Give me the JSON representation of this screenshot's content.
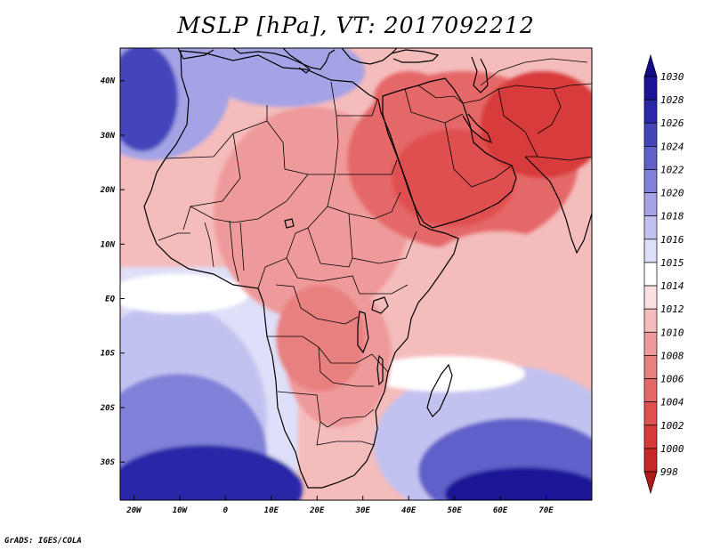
{
  "title": "MSLP [hPa], VT: 2017092212",
  "credit": "GrADS: IGES/COLA",
  "chart_data": {
    "type": "heatmap",
    "variable": "Mean sea level pressure",
    "units": "hPa",
    "valid_time": "2017092212",
    "lon_range": [
      -23,
      80
    ],
    "lat_range": [
      -37,
      46
    ],
    "x_ticks": [
      {
        "value": -20,
        "label": "20W"
      },
      {
        "value": -10,
        "label": "10W"
      },
      {
        "value": 0,
        "label": "0"
      },
      {
        "value": 10,
        "label": "10E"
      },
      {
        "value": 20,
        "label": "20E"
      },
      {
        "value": 30,
        "label": "30E"
      },
      {
        "value": 40,
        "label": "40E"
      },
      {
        "value": 50,
        "label": "50E"
      },
      {
        "value": 60,
        "label": "60E"
      },
      {
        "value": 70,
        "label": "70E"
      }
    ],
    "y_ticks": [
      {
        "value": 40,
        "label": "40N"
      },
      {
        "value": 30,
        "label": "30N"
      },
      {
        "value": 20,
        "label": "20N"
      },
      {
        "value": 10,
        "label": "10N"
      },
      {
        "value": 0,
        "label": "EQ"
      },
      {
        "value": -10,
        "label": "10S"
      },
      {
        "value": -20,
        "label": "20S"
      },
      {
        "value": -30,
        "label": "30S"
      }
    ],
    "colorbar": {
      "levels": [
        998,
        1000,
        1002,
        1004,
        1006,
        1008,
        1010,
        1012,
        1014,
        1015,
        1016,
        1018,
        1020,
        1022,
        1024,
        1026,
        1028,
        1030
      ],
      "colors": [
        "#b21a1a",
        "#c62828",
        "#d73a3a",
        "#e05050",
        "#e56868",
        "#e98080",
        "#ef9a9a",
        "#f5bcbc",
        "#fbe0e0",
        "#ffffff",
        "#dedff8",
        "#c2c2f0",
        "#a3a3e6",
        "#8080d8",
        "#6060ca",
        "#4545bb",
        "#2a28a8",
        "#1c1296",
        "#120a86"
      ]
    }
  }
}
